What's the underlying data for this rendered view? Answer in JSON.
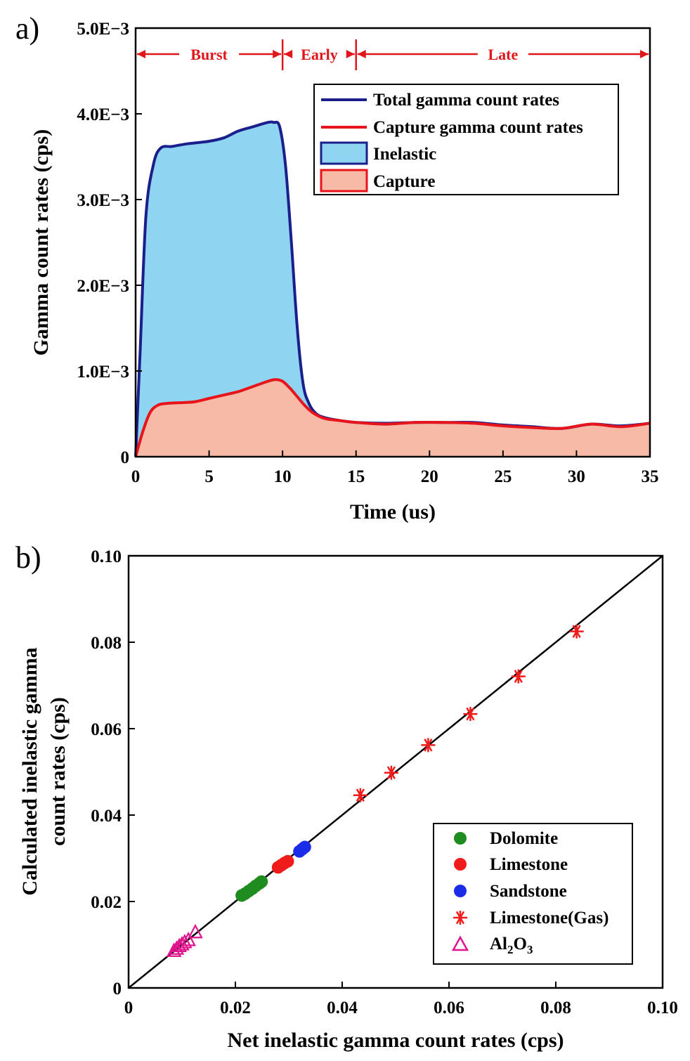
{
  "chart_data": [
    {
      "panel": "a)",
      "type": "area",
      "xlabel": "Time (us)",
      "ylabel": "Gamma count rates (cps)",
      "xlim": [
        0,
        35
      ],
      "ylim": [
        0,
        0.005
      ],
      "xticks": [
        0,
        5,
        10,
        15,
        20,
        25,
        30,
        35
      ],
      "xtick_labels": [
        "0",
        "5",
        "10",
        "15",
        "20",
        "25",
        "30",
        "35"
      ],
      "yticks": [
        0,
        0.001,
        0.002,
        0.003,
        0.004,
        0.005
      ],
      "ytick_labels": [
        "0",
        "1.0E−3",
        "2.0E−3",
        "3.0E−3",
        "4.0E−3",
        "5.0E−3"
      ],
      "phases": [
        {
          "label": "Burst",
          "start": 0,
          "end": 10
        },
        {
          "label": "Early",
          "start": 10,
          "end": 15
        },
        {
          "label": "Late",
          "start": 15,
          "end": 35
        }
      ],
      "colors": {
        "total_line": "#1a1f8c",
        "capture_line": "#e8141b",
        "inelastic_fill": "#8fd4f0",
        "capture_fill": "#f6baa6",
        "phase": "#e0161b"
      },
      "legend_position": "top-right",
      "legend": [
        "Total gamma count rates",
        "Capture gamma count rates",
        "Inelastic",
        "Capture"
      ],
      "series": [
        {
          "name": "Total gamma count rates",
          "x": [
            0,
            0.3,
            0.7,
            1.2,
            1.7,
            2.5,
            3.5,
            5,
            6,
            7,
            8,
            9,
            9.4,
            9.8,
            10.2,
            10.6,
            11,
            11.4,
            11.8,
            12.3,
            13,
            14,
            15,
            17,
            19,
            21,
            23,
            25,
            27,
            29,
            31,
            33,
            35
          ],
          "y": [
            0,
            0.0012,
            0.0028,
            0.0034,
            0.0036,
            0.00362,
            0.00365,
            0.00368,
            0.00372,
            0.0038,
            0.00385,
            0.0039,
            0.0039,
            0.00385,
            0.0034,
            0.0025,
            0.0015,
            0.00085,
            0.00062,
            0.0005,
            0.00045,
            0.00042,
            0.0004,
            0.00039,
            0.0004,
            0.0004,
            0.0004,
            0.00037,
            0.00035,
            0.00033,
            0.00038,
            0.00036,
            0.00039
          ]
        },
        {
          "name": "Capture gamma count rates",
          "x": [
            0,
            0.5,
            1,
            1.5,
            2,
            3,
            4,
            5,
            6,
            7,
            8,
            9,
            9.5,
            10,
            10.5,
            11,
            11.5,
            12,
            12.5,
            13,
            14,
            15,
            17,
            19,
            21,
            23,
            25,
            27,
            29,
            31,
            33,
            35
          ],
          "y": [
            0,
            0.0003,
            0.00052,
            0.0006,
            0.00062,
            0.00063,
            0.00064,
            0.00068,
            0.00072,
            0.00076,
            0.00082,
            0.00088,
            0.0009,
            0.00088,
            0.0008,
            0.0007,
            0.0006,
            0.00052,
            0.00047,
            0.00044,
            0.00042,
            0.0004,
            0.00038,
            0.0004,
            0.0004,
            0.00039,
            0.00036,
            0.00034,
            0.00033,
            0.00038,
            0.00035,
            0.00039
          ]
        }
      ]
    },
    {
      "panel": "b)",
      "type": "scatter",
      "xlabel": "Net inelastic gamma count rates (cps)",
      "ylabel_lines": [
        "Calculated inelastic gamma",
        "count rates (cps)"
      ],
      "xlim": [
        0,
        0.1
      ],
      "ylim": [
        0,
        0.1
      ],
      "xticks": [
        0,
        0.02,
        0.04,
        0.06,
        0.08,
        0.1
      ],
      "xtick_labels": [
        "0",
        "0.02",
        "0.04",
        "0.06",
        "0.08",
        "0.10"
      ],
      "yticks": [
        0,
        0.02,
        0.04,
        0.06,
        0.08,
        0.1
      ],
      "ytick_labels": [
        "0",
        "0.02",
        "0.04",
        "0.06",
        "0.08",
        "0.10"
      ],
      "reference_line": {
        "x": [
          0,
          0.1
        ],
        "y": [
          0,
          0.1
        ]
      },
      "legend_position": "bottom-right",
      "series": [
        {
          "name": "Dolomite",
          "marker": "circle",
          "color": "#1e8c1e",
          "x": [
            0.0212,
            0.0218,
            0.0225,
            0.0232,
            0.0238,
            0.0245,
            0.0249
          ],
          "y": [
            0.0214,
            0.0218,
            0.0224,
            0.023,
            0.0236,
            0.0242,
            0.0246
          ]
        },
        {
          "name": "Limestone",
          "marker": "circle",
          "color": "#f01c1c",
          "x": [
            0.028,
            0.0286,
            0.0292,
            0.0298
          ],
          "y": [
            0.0279,
            0.0284,
            0.0289,
            0.0293
          ]
        },
        {
          "name": "Sandstone",
          "marker": "circle",
          "color": "#1a2ce8",
          "x": [
            0.032,
            0.0325,
            0.033
          ],
          "y": [
            0.0316,
            0.0321,
            0.0326
          ]
        },
        {
          "name": "Limestone(Gas)",
          "marker": "asterisk",
          "color": "#f01c1c",
          "x": [
            0.0434,
            0.0492,
            0.0561,
            0.064,
            0.073,
            0.0839
          ],
          "y": [
            0.0446,
            0.0498,
            0.0562,
            0.0634,
            0.0721,
            0.0825
          ]
        },
        {
          "name": "Al₂O₃",
          "legend_main": "Al",
          "legend_sub1": "2",
          "legend_mid": "O",
          "legend_sub2": "3",
          "marker": "triangle-open",
          "color": "#e0148c",
          "x": [
            0.0085,
            0.009,
            0.0095,
            0.01,
            0.0105,
            0.0112,
            0.0125
          ],
          "y": [
            0.0085,
            0.009,
            0.0096,
            0.01,
            0.0105,
            0.011,
            0.0128
          ]
        }
      ]
    }
  ]
}
